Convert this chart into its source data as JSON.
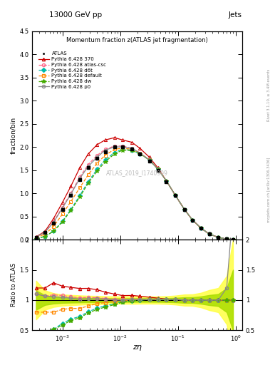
{
  "title_top": "13000 GeV pp",
  "title_right": "Jets",
  "plot_title": "Momentum fraction z(ATLAS jet fragmentation)",
  "xlabel": "zη",
  "ylabel_main": "fraction/bin",
  "ylabel_ratio": "Ratio to ATLAS",
  "right_label_top": "Rivet 3.1.10, ≥ 3.4M events",
  "right_label_bottom": "mcplots.cern.ch [arXiv:1306.3436]",
  "watermark": "ATLAS_2019_I1740909",
  "xlim": [
    0.0003,
    1.3
  ],
  "ylim_main": [
    0.0,
    4.5
  ],
  "ylim_ratio": [
    0.5,
    2.0
  ],
  "x_data": [
    0.00035,
    0.0005,
    0.0007,
    0.001,
    0.0014,
    0.002,
    0.0028,
    0.004,
    0.0055,
    0.008,
    0.011,
    0.016,
    0.022,
    0.032,
    0.045,
    0.063,
    0.09,
    0.13,
    0.18,
    0.25,
    0.35,
    0.5,
    0.7,
    0.9
  ],
  "atlas_y": [
    0.05,
    0.15,
    0.35,
    0.65,
    0.95,
    1.3,
    1.55,
    1.75,
    1.9,
    2.0,
    2.0,
    1.95,
    1.85,
    1.7,
    1.5,
    1.25,
    0.95,
    0.65,
    0.42,
    0.25,
    0.12,
    0.05,
    0.01,
    0.002
  ],
  "atlas_err": [
    0.008,
    0.012,
    0.02,
    0.03,
    0.04,
    0.05,
    0.055,
    0.06,
    0.06,
    0.06,
    0.06,
    0.06,
    0.055,
    0.05,
    0.045,
    0.04,
    0.035,
    0.03,
    0.02,
    0.015,
    0.01,
    0.005,
    0.002,
    0.001
  ],
  "py370_y": [
    0.06,
    0.18,
    0.45,
    0.8,
    1.15,
    1.55,
    1.85,
    2.05,
    2.15,
    2.2,
    2.15,
    2.1,
    1.97,
    1.78,
    1.55,
    1.27,
    0.96,
    0.65,
    0.42,
    0.25,
    0.12,
    0.05,
    0.01,
    0.002
  ],
  "py_atl_csc_y": [
    0.055,
    0.16,
    0.38,
    0.7,
    1.0,
    1.35,
    1.62,
    1.82,
    1.95,
    2.02,
    2.02,
    1.97,
    1.87,
    1.72,
    1.52,
    1.27,
    0.96,
    0.65,
    0.42,
    0.25,
    0.12,
    0.05,
    0.01,
    0.002
  ],
  "py_d6t_y": [
    0.02,
    0.07,
    0.18,
    0.4,
    0.65,
    0.95,
    1.25,
    1.52,
    1.72,
    1.88,
    1.95,
    1.93,
    1.85,
    1.72,
    1.52,
    1.27,
    0.96,
    0.65,
    0.42,
    0.25,
    0.12,
    0.05,
    0.01,
    0.002
  ],
  "py_def_y": [
    0.04,
    0.12,
    0.28,
    0.55,
    0.82,
    1.12,
    1.4,
    1.65,
    1.82,
    1.95,
    1.97,
    1.95,
    1.87,
    1.72,
    1.52,
    1.27,
    0.96,
    0.65,
    0.42,
    0.25,
    0.12,
    0.05,
    0.01,
    0.002
  ],
  "py_dw_y": [
    0.02,
    0.07,
    0.18,
    0.38,
    0.63,
    0.92,
    1.22,
    1.48,
    1.68,
    1.85,
    1.93,
    1.92,
    1.85,
    1.72,
    1.52,
    1.27,
    0.96,
    0.65,
    0.42,
    0.25,
    0.12,
    0.05,
    0.01,
    0.002
  ],
  "py_p0_y": [
    0.055,
    0.16,
    0.37,
    0.68,
    0.98,
    1.32,
    1.58,
    1.78,
    1.93,
    2.0,
    2.0,
    1.97,
    1.87,
    1.72,
    1.52,
    1.27,
    0.96,
    0.65,
    0.42,
    0.25,
    0.12,
    0.05,
    0.012,
    0.005
  ],
  "color_370": "#cc0000",
  "color_atl_csc": "#ff6688",
  "color_d6t": "#00bbaa",
  "color_def": "#ff8800",
  "color_dw": "#44aa00",
  "color_p0": "#888888",
  "color_atlas": "#000000",
  "band_yellow": "#ffff44",
  "band_green": "#aadd00"
}
